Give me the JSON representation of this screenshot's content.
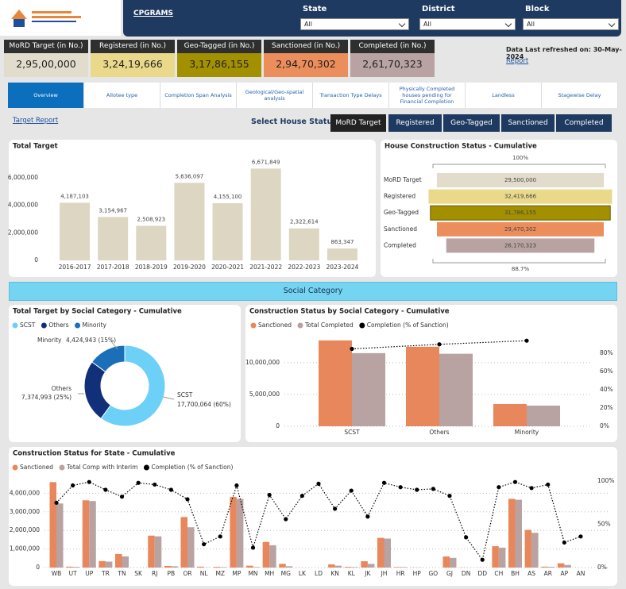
{
  "header": {
    "app_name": "CPGRAMS",
    "filters": [
      {
        "label": "State",
        "value": "All"
      },
      {
        "label": "District",
        "value": "All"
      },
      {
        "label": "Block",
        "value": "All"
      }
    ]
  },
  "kpis": [
    {
      "label": "MoRD Target (in No.)",
      "value": "2,95,00,000",
      "color": "#e1dccb"
    },
    {
      "label": "Registered (in No.)",
      "value": "3,24,19,666",
      "color": "#ead98b"
    },
    {
      "label": "Geo-Tagged (in No.)",
      "value": "3,17,86,155",
      "color": "#a39000"
    },
    {
      "label": "Sanctioned (in No.)",
      "value": "2,94,70,302",
      "color": "#ec8d5c"
    },
    {
      "label": "Completed (in No.)",
      "value": "2,61,70,323",
      "color": "#b9a2a2"
    }
  ],
  "refresh": {
    "text": "Data Last refreshed on: 30-May-2024",
    "link": "Report"
  },
  "tabs": [
    "Overview",
    "Allotee type",
    "Completion Span Analysis",
    "Geological/Geo-spatial analysis",
    "Transaction Type Delays",
    "Physically Completed houses pending for Financial Completion",
    "Landless",
    "Stagewise Delay"
  ],
  "target_report": "Target Report",
  "status_selector": {
    "label": "Select House Status:",
    "options": [
      "MoRD Target",
      "Registered",
      "Geo-Tagged",
      "Sanctioned",
      "Completed"
    ]
  },
  "section_title": "Social Category",
  "chart_data": [
    {
      "type": "bar",
      "title": "Total Target",
      "categories": [
        "2016-2017",
        "2017-2018",
        "2018-2019",
        "2019-2020",
        "2020-2021",
        "2021-2022",
        "2022-2023",
        "2023-2024"
      ],
      "values": [
        4187103,
        3154967,
        2508923,
        5636097,
        4155100,
        6671849,
        2322614,
        863347
      ],
      "value_labels": [
        "4,187,103",
        "3,154,967",
        "2,508,923",
        "5,636,097",
        "4,155,100",
        "6,671,849",
        "2,322,614",
        "863,347"
      ],
      "color": "#dcd6c3",
      "ylim": [
        0,
        7500000
      ],
      "yticks": [
        0,
        {
          "value": 2000000,
          "label": "2,000,000"
        },
        {
          "value": 4000000,
          "label": "4,000,000"
        },
        {
          "value": 6000000,
          "label": "6,000,000"
        }
      ]
    },
    {
      "type": "funnel",
      "title": "House Construction Status - Cumulative",
      "categories": [
        "MoRD Target",
        "Registered",
        "Geo-Tagged",
        "Sanctioned",
        "Completed"
      ],
      "values": [
        29500000,
        32419666,
        31786155,
        29470302,
        26170323
      ],
      "value_labels": [
        "29,500,000",
        "32,419,666",
        "31,786,155",
        "29,470,302",
        "26,170,323"
      ],
      "colors": [
        "#e1dccb",
        "#ead98b",
        "#a39000",
        "#ec8d5c",
        "#b9a2a2"
      ],
      "annotations": [
        "100%",
        "88.7%"
      ]
    },
    {
      "type": "donut",
      "title": "Total Target by Social Category - Cumulative",
      "categories": [
        "SCST",
        "Others",
        "Minority"
      ],
      "values": [
        17700064,
        7374993,
        4424943
      ],
      "value_labels": [
        "17,700,064 (60%)",
        "7,374,993 (25%)",
        "4,424,943 (15%)"
      ],
      "colors": [
        "#6dd0f7",
        "#12307a",
        "#1a6fb8"
      ]
    },
    {
      "type": "combo",
      "title": "Construction Status by Social Category - Cumulative",
      "categories": [
        "SCST",
        "Others",
        "Minority"
      ],
      "series": [
        {
          "name": "Sanctioned",
          "type": "bar",
          "color": "#e8875b",
          "values": [
            13500000,
            12500000,
            3500000
          ]
        },
        {
          "name": "Total Completed",
          "type": "bar",
          "color": "#b8a2a2",
          "values": [
            11500000,
            11400000,
            3250000
          ]
        },
        {
          "name": "Completion (% of Sanction)",
          "type": "line",
          "axis": "y2",
          "color": "#000000",
          "values": [
            85,
            90,
            94
          ]
        }
      ],
      "ylim": [
        0,
        14600000
      ],
      "yticks": [
        0,
        {
          "value": 5000000,
          "label": "5,000,000"
        },
        {
          "value": 10000000,
          "label": "10,000,000"
        }
      ],
      "y2lim": [
        0,
        102
      ],
      "y2ticks": [
        {
          "value": 0,
          "label": "0%"
        },
        {
          "value": 20,
          "label": "20%"
        },
        {
          "value": 40,
          "label": "40%"
        },
        {
          "value": 60,
          "label": "60%"
        },
        {
          "value": 80,
          "label": "80%"
        }
      ],
      "grid": true
    },
    {
      "type": "combo",
      "title": "Construction Status for State - Cumulative",
      "categories": [
        "WB",
        "UT",
        "UP",
        "TR",
        "TN",
        "SK",
        "RJ",
        "PB",
        "OR",
        "NL",
        "MZ",
        "MP",
        "MN",
        "MH",
        "MG",
        "LK",
        "LD",
        "KN",
        "KL",
        "JK",
        "JH",
        "HR",
        "HP",
        "GO",
        "GJ",
        "DN",
        "DD",
        "CH",
        "BH",
        "AS",
        "AR",
        "AP",
        "AN"
      ],
      "series": [
        {
          "name": "Sanctioned",
          "type": "bar",
          "color": "#e8875b",
          "values": [
            4600000,
            50000,
            3620000,
            350000,
            730000,
            3000,
            1720000,
            90000,
            2720000,
            50000,
            40000,
            3800000,
            100000,
            1380000,
            200000,
            5000,
            300,
            170000,
            40000,
            340000,
            1600000,
            30000,
            10000,
            200,
            600000,
            10000,
            5000,
            1150000,
            3700000,
            2030000,
            50000,
            230000,
            2000
          ]
        },
        {
          "name": "Total Comp with Interim",
          "type": "bar",
          "color": "#b8a2a2",
          "values": [
            3450000,
            40000,
            3580000,
            320000,
            600000,
            3000,
            1680000,
            70000,
            2170000,
            10000,
            30000,
            3700000,
            30000,
            1200000,
            70000,
            2000,
            100,
            100000,
            30000,
            200000,
            1560000,
            30000,
            10000,
            100,
            520000,
            3000,
            1000,
            1070000,
            3650000,
            1870000,
            40000,
            140000,
            1500
          ]
        },
        {
          "name": "Completion (% of Sanction)",
          "type": "line",
          "axis": "y2",
          "color": "#000000",
          "values": [
            75,
            95,
            99,
            90,
            82,
            98,
            96,
            90,
            79,
            27,
            36,
            95,
            23,
            84,
            56,
            83,
            97,
            68,
            89,
            59,
            98,
            93,
            90,
            91,
            83,
            35,
            9,
            93,
            99,
            92,
            96,
            29,
            36
          ]
        }
      ],
      "ylim": [
        0,
        4700000
      ],
      "yticks": [
        0,
        {
          "value": 1000000,
          "label": "1,000,000"
        },
        {
          "value": 2000000,
          "label": "2,000,000"
        },
        {
          "value": 3000000,
          "label": "3,000,000"
        },
        {
          "value": 4000000,
          "label": "4,000,000"
        }
      ],
      "y2lim": [
        0,
        101
      ],
      "y2ticks": [
        {
          "value": 0,
          "label": "0%"
        },
        {
          "value": 50,
          "label": "50%"
        },
        {
          "value": 100,
          "label": "100%"
        }
      ],
      "grid": true
    }
  ]
}
